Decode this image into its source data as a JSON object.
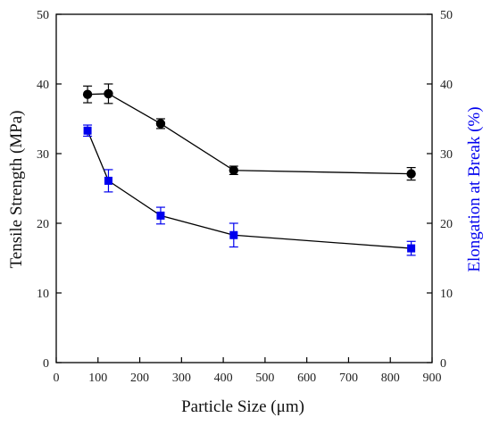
{
  "chart_data": {
    "type": "scatter",
    "title": "",
    "xlabel": "Particle Size (μm)",
    "ylabel": "Tensile Strength (MPa)",
    "y2label": "Elongation at Break (%)",
    "xlim": [
      0,
      900
    ],
    "ylim": [
      0,
      50
    ],
    "y2lim": [
      0,
      50
    ],
    "xticks": [
      0,
      100,
      200,
      300,
      400,
      500,
      600,
      700,
      800,
      900
    ],
    "yticks": [
      0,
      10,
      20,
      30,
      40,
      50
    ],
    "y2ticks": [
      0,
      10,
      20,
      30,
      40,
      50
    ],
    "grid": false,
    "legend": "none",
    "x": [
      75,
      125,
      250,
      425,
      850
    ],
    "series": [
      {
        "axis": "left",
        "marker": "circle",
        "color": "#000000",
        "values": [
          38.5,
          38.6,
          34.3,
          27.6,
          27.1
        ],
        "errors": [
          1.2,
          1.4,
          0.7,
          0.6,
          0.9
        ]
      },
      {
        "axis": "right",
        "marker": "square",
        "color": "#0000ee",
        "values": [
          33.3,
          26.1,
          21.1,
          18.3,
          16.4
        ],
        "errors": [
          0.8,
          1.6,
          1.2,
          1.7,
          1.0
        ]
      }
    ]
  }
}
